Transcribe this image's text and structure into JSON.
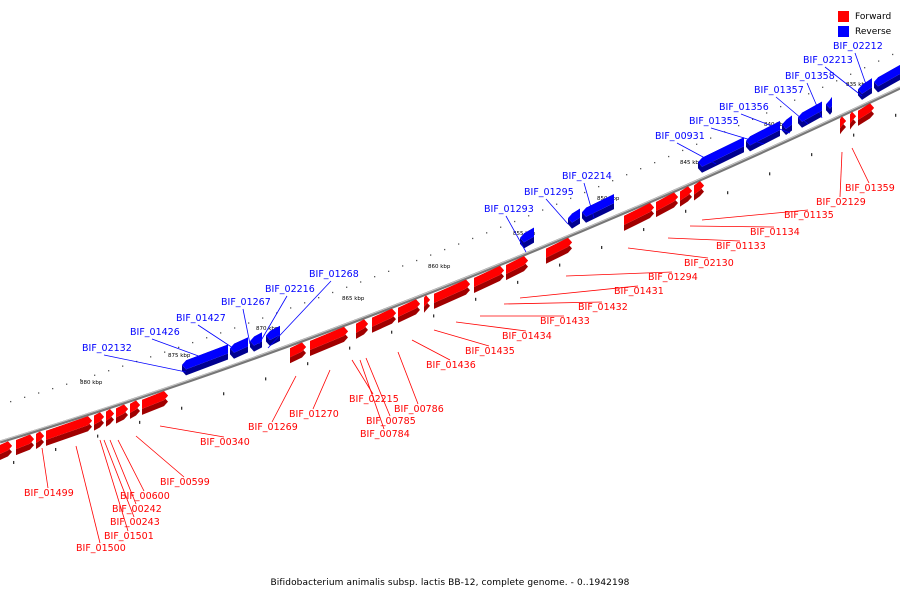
{
  "legend": {
    "forward_label": "Forward",
    "reverse_label": "Reverse",
    "forward_color": "#ff0000",
    "reverse_color": "#0000ff"
  },
  "caption": "Bifidobacterium animalis subsp. lactis BB-12, complete genome. - 0..1942198",
  "kbp_marks": [
    "835 kbp",
    "840 kbp",
    "845 kbp",
    "850 kbp",
    "855 kbp",
    "860 kbp",
    "865 kbp",
    "870 kbp",
    "875 kbp",
    "880 kbp"
  ],
  "reverse_genes": [
    "BIF_02212",
    "BIF_02213",
    "BIF_01358",
    "BIF_01357",
    "BIF_01356",
    "BIF_01355",
    "BIF_00931",
    "BIF_02214",
    "BIF_01295",
    "BIF_01293",
    "BIF_01268",
    "BIF_02216",
    "BIF_01267",
    "BIF_01427",
    "BIF_01426",
    "BIF_02132"
  ],
  "forward_genes": [
    "BIF_01359",
    "BIF_02129",
    "BIF_01135",
    "BIF_01134",
    "BIF_01133",
    "BIF_02130",
    "BIF_01294",
    "BIF_01431",
    "BIF_01432",
    "BIF_01433",
    "BIF_01434",
    "BIF_01435",
    "BIF_01436",
    "BIF_00786",
    "BIF_02215",
    "BIF_00785",
    "BIF_00784",
    "BIF_01270",
    "BIF_01269",
    "BIF_00340",
    "BIF_00599",
    "BIF_00600",
    "BIF_00242",
    "BIF_00243",
    "BIF_01501",
    "BIF_01500",
    "BIF_01499"
  ]
}
